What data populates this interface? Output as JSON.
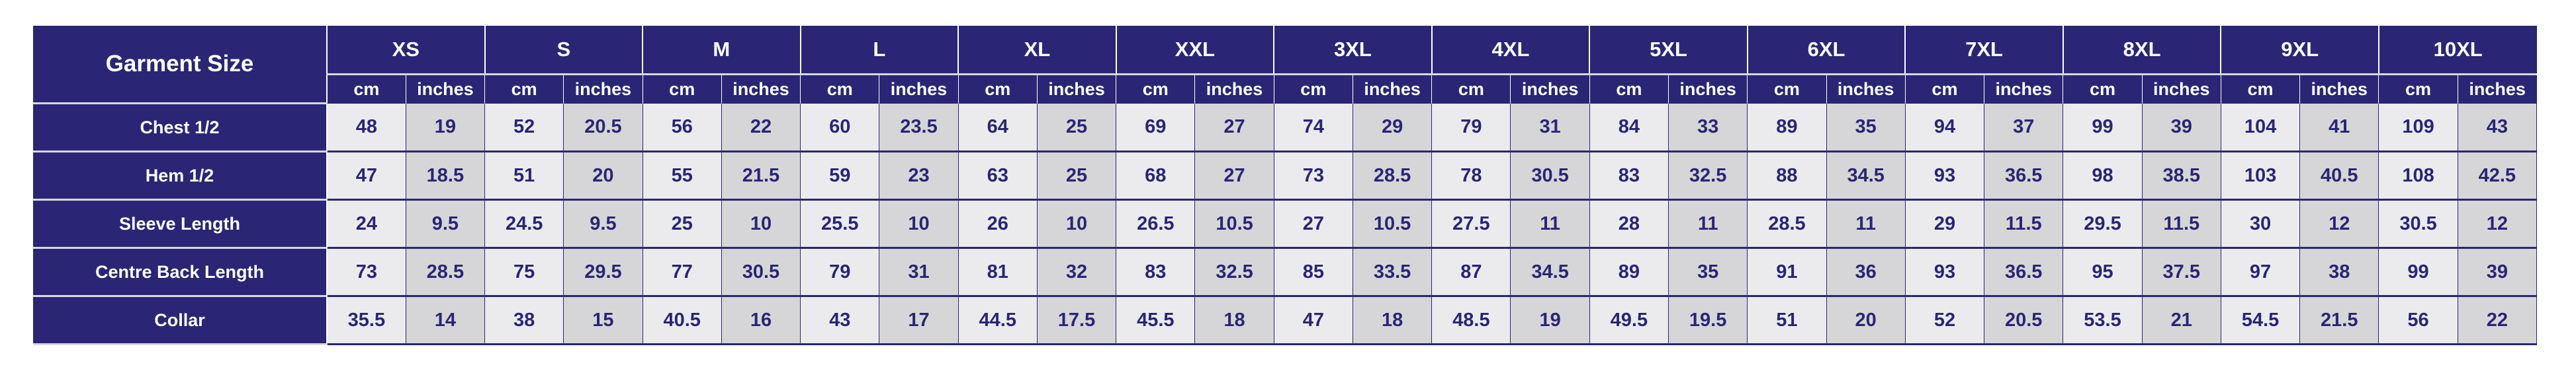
{
  "table": {
    "corner_label": "Garment Size",
    "unit_labels": {
      "cm": "cm",
      "inches": "inches"
    },
    "sizes": [
      "XS",
      "S",
      "M",
      "L",
      "XL",
      "XXL",
      "3XL",
      "4XL",
      "5XL",
      "6XL",
      "7XL",
      "8XL",
      "9XL",
      "10XL"
    ],
    "rows": [
      {
        "label": "Chest 1/2",
        "values": [
          [
            "48",
            "19"
          ],
          [
            "52",
            "20.5"
          ],
          [
            "56",
            "22"
          ],
          [
            "60",
            "23.5"
          ],
          [
            "64",
            "25"
          ],
          [
            "69",
            "27"
          ],
          [
            "74",
            "29"
          ],
          [
            "79",
            "31"
          ],
          [
            "84",
            "33"
          ],
          [
            "89",
            "35"
          ],
          [
            "94",
            "37"
          ],
          [
            "99",
            "39"
          ],
          [
            "104",
            "41"
          ],
          [
            "109",
            "43"
          ]
        ]
      },
      {
        "label": "Hem 1/2",
        "values": [
          [
            "47",
            "18.5"
          ],
          [
            "51",
            "20"
          ],
          [
            "55",
            "21.5"
          ],
          [
            "59",
            "23"
          ],
          [
            "63",
            "25"
          ],
          [
            "68",
            "27"
          ],
          [
            "73",
            "28.5"
          ],
          [
            "78",
            "30.5"
          ],
          [
            "83",
            "32.5"
          ],
          [
            "88",
            "34.5"
          ],
          [
            "93",
            "36.5"
          ],
          [
            "98",
            "38.5"
          ],
          [
            "103",
            "40.5"
          ],
          [
            "108",
            "42.5"
          ]
        ]
      },
      {
        "label": "Sleeve Length",
        "values": [
          [
            "24",
            "9.5"
          ],
          [
            "24.5",
            "9.5"
          ],
          [
            "25",
            "10"
          ],
          [
            "25.5",
            "10"
          ],
          [
            "26",
            "10"
          ],
          [
            "26.5",
            "10.5"
          ],
          [
            "27",
            "10.5"
          ],
          [
            "27.5",
            "11"
          ],
          [
            "28",
            "11"
          ],
          [
            "28.5",
            "11"
          ],
          [
            "29",
            "11.5"
          ],
          [
            "29.5",
            "11.5"
          ],
          [
            "30",
            "12"
          ],
          [
            "30.5",
            "12"
          ]
        ]
      },
      {
        "label": "Centre Back Length",
        "values": [
          [
            "73",
            "28.5"
          ],
          [
            "75",
            "29.5"
          ],
          [
            "77",
            "30.5"
          ],
          [
            "79",
            "31"
          ],
          [
            "81",
            "32"
          ],
          [
            "83",
            "32.5"
          ],
          [
            "85",
            "33.5"
          ],
          [
            "87",
            "34.5"
          ],
          [
            "89",
            "35"
          ],
          [
            "91",
            "36"
          ],
          [
            "93",
            "36.5"
          ],
          [
            "95",
            "37.5"
          ],
          [
            "97",
            "38"
          ],
          [
            "99",
            "39"
          ]
        ]
      },
      {
        "label": "Collar",
        "values": [
          [
            "35.5",
            "14"
          ],
          [
            "38",
            "15"
          ],
          [
            "40.5",
            "16"
          ],
          [
            "43",
            "17"
          ],
          [
            "44.5",
            "17.5"
          ],
          [
            "45.5",
            "18"
          ],
          [
            "47",
            "18"
          ],
          [
            "48.5",
            "19"
          ],
          [
            "49.5",
            "19.5"
          ],
          [
            "51",
            "20"
          ],
          [
            "52",
            "20.5"
          ],
          [
            "53.5",
            "21"
          ],
          [
            "54.5",
            "21.5"
          ],
          [
            "56",
            "22"
          ]
        ]
      }
    ]
  },
  "colors": {
    "header_bg": "#2a2675",
    "text": "#2a2675",
    "cm_cell_bg": "#ebebed",
    "inches_cell_bg": "#d6d6d8"
  }
}
